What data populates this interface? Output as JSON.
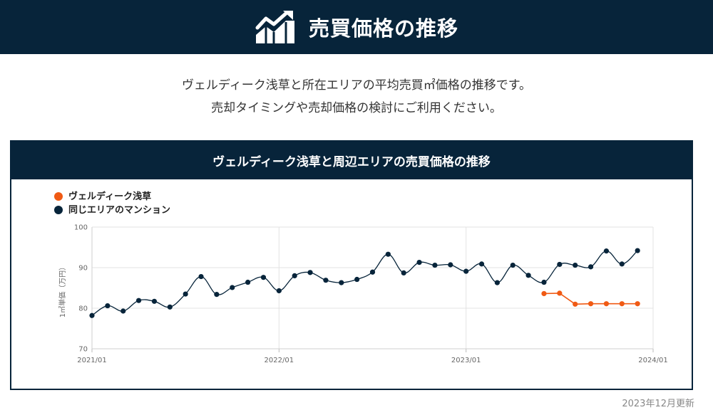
{
  "header": {
    "title": "売買価格の推移",
    "icon": "chart-up-icon"
  },
  "intro": {
    "line1": "ヴェルディーク浅草と所在エリアの平均売買㎡価格の推移です。",
    "line2": "売却タイミングや売却価格の検討にご利用ください。"
  },
  "panel": {
    "title": "ヴェルディーク浅草と周辺エリアの売買価格の推移"
  },
  "chart_data": {
    "type": "line",
    "ylabel": "1㎡単価（万円）",
    "ylim": [
      70,
      100
    ],
    "yticks": [
      "70",
      "80",
      "90",
      "100"
    ],
    "xticks": [
      "2021/01",
      "2022/01",
      "2023/01",
      "2024/01"
    ],
    "x_range": [
      "2021/01",
      "2024/01"
    ],
    "legend_position": "top-left",
    "grid": true,
    "series": [
      {
        "name": "ヴェルディーク浅草",
        "color": "#f05a14",
        "x": [
          "2023/06",
          "2023/07",
          "2023/08",
          "2023/09",
          "2023/10",
          "2023/11",
          "2023/12"
        ],
        "values": [
          83.6,
          83.7,
          81.0,
          81.1,
          81.1,
          81.1,
          81.1
        ]
      },
      {
        "name": "同じエリアのマンション",
        "color": "#07243a",
        "x": [
          "2021/01",
          "2021/02",
          "2021/03",
          "2021/04",
          "2021/05",
          "2021/06",
          "2021/07",
          "2021/08",
          "2021/09",
          "2021/10",
          "2021/11",
          "2021/12",
          "2022/01",
          "2022/02",
          "2022/03",
          "2022/04",
          "2022/05",
          "2022/06",
          "2022/07",
          "2022/08",
          "2022/09",
          "2022/10",
          "2022/11",
          "2022/12",
          "2023/01",
          "2023/02",
          "2023/03",
          "2023/04",
          "2023/05",
          "2023/06",
          "2023/07",
          "2023/08",
          "2023/09",
          "2023/10",
          "2023/11",
          "2023/12"
        ],
        "values": [
          78.2,
          80.6,
          79.3,
          81.9,
          81.7,
          80.3,
          83.5,
          87.8,
          83.4,
          85.1,
          86.4,
          87.6,
          84.3,
          88.0,
          88.8,
          86.9,
          86.3,
          87.1,
          88.9,
          93.3,
          88.7,
          91.3,
          90.6,
          90.7,
          89.1,
          90.9,
          86.3,
          90.6,
          88.1,
          86.4,
          90.8,
          90.6,
          90.2,
          94.1,
          90.9,
          94.2
        ]
      }
    ]
  },
  "footer": {
    "updated": "2023年12月更新"
  }
}
